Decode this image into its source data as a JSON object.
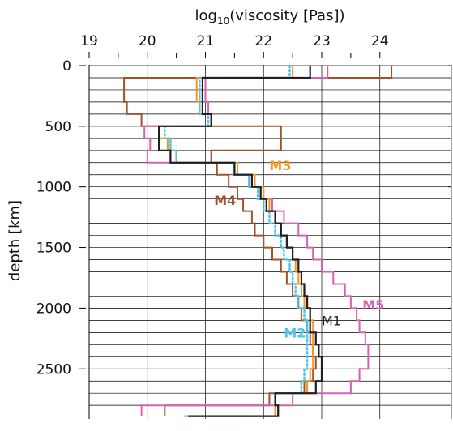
{
  "chart_data": {
    "type": "line",
    "xlabel_prefix": "log",
    "xlabel_sub": "10",
    "xlabel_suffix": "(viscosity [Pas])",
    "ylabel": "depth [km]",
    "xlim": [
      19,
      24.5
    ],
    "ylim": [
      0,
      2890
    ],
    "x_ticks": [
      "19",
      "20",
      "21",
      "22",
      "23",
      "24"
    ],
    "y_ticks": [
      "0",
      "500",
      "1000",
      "1500",
      "2000",
      "2500"
    ],
    "layer_boundaries": [
      0,
      100,
      200,
      300,
      400,
      500,
      600,
      700,
      800,
      900,
      1000,
      1100,
      1200,
      1300,
      1400,
      1500,
      1600,
      1700,
      1800,
      1900,
      2000,
      2100,
      2200,
      2300,
      2400,
      2500,
      2600,
      2700,
      2800,
      2890
    ],
    "series": [
      {
        "name": "M1",
        "color": "#231f20",
        "style": "solid",
        "label_bold": false,
        "label_x": 23.0,
        "label_y": 2100,
        "values": [
          22.8,
          20.95,
          20.95,
          20.95,
          21.1,
          20.2,
          20.2,
          20.4,
          21.5,
          21.8,
          21.95,
          22.05,
          22.2,
          22.3,
          22.4,
          22.5,
          22.6,
          22.65,
          22.7,
          22.75,
          22.8,
          22.8,
          22.9,
          22.95,
          23.0,
          23.0,
          22.9,
          22.2,
          22.25,
          20.7
        ]
      },
      {
        "name": "M2",
        "color": "#4fc3e8",
        "style": "dotted",
        "label_bold": true,
        "label_x": 22.35,
        "label_y": 2200,
        "values": [
          22.45,
          20.9,
          20.9,
          20.9,
          21.05,
          20.3,
          20.4,
          20.5,
          21.5,
          21.75,
          21.9,
          22.0,
          22.1,
          22.2,
          22.3,
          22.35,
          22.45,
          22.5,
          22.55,
          22.6,
          22.7,
          22.75,
          22.75,
          22.75,
          22.75,
          22.7,
          22.65,
          22.2,
          22.25,
          20.65
        ]
      },
      {
        "name": "M3",
        "color": "#f7941d",
        "style": "solid",
        "label_bold": true,
        "label_x": 22.1,
        "label_y": 820,
        "values": [
          22.5,
          20.85,
          20.85,
          20.9,
          21.1,
          20.2,
          20.35,
          20.5,
          21.55,
          21.85,
          22.0,
          22.1,
          22.2,
          22.3,
          22.4,
          22.5,
          22.55,
          22.6,
          22.65,
          22.7,
          22.8,
          22.85,
          22.85,
          22.85,
          22.85,
          22.8,
          22.75,
          22.2,
          22.2,
          20.7
        ]
      },
      {
        "name": "M4",
        "color": "#a0522d",
        "style": "solid",
        "label_bold": true,
        "label_x": 21.15,
        "label_y": 1110,
        "values": [
          24.2,
          19.6,
          19.6,
          19.65,
          19.9,
          22.3,
          22.3,
          21.1,
          21.2,
          21.4,
          21.55,
          21.65,
          21.8,
          21.85,
          22.0,
          22.15,
          22.3,
          22.4,
          22.5,
          22.6,
          22.65,
          22.75,
          22.8,
          22.85,
          22.9,
          22.85,
          22.7,
          22.1,
          20.3,
          20.3
        ]
      },
      {
        "name": "M5",
        "color": "#d462b4",
        "style": "solid",
        "label_bold": true,
        "label_x": 23.7,
        "label_y": 1970,
        "values": [
          23.1,
          21.0,
          21.0,
          21.05,
          21.1,
          19.95,
          20.05,
          20.0,
          21.5,
          21.75,
          21.95,
          22.15,
          22.35,
          22.6,
          22.75,
          22.85,
          23.0,
          23.2,
          23.4,
          23.5,
          23.6,
          23.65,
          23.75,
          23.8,
          23.8,
          23.65,
          23.5,
          22.5,
          19.9,
          19.9
        ]
      }
    ]
  }
}
